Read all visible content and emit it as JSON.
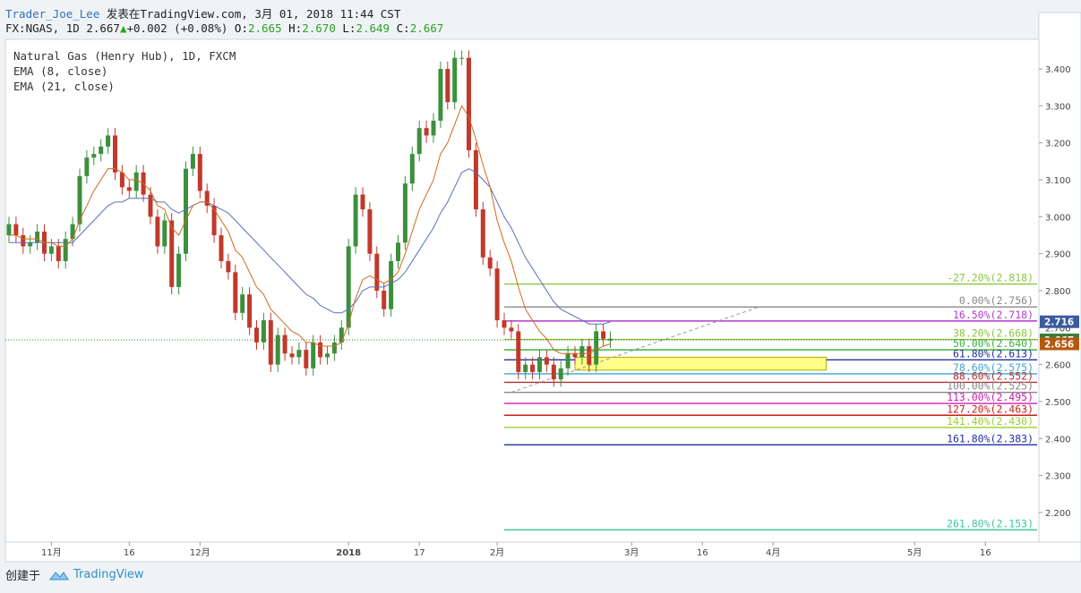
{
  "header": {
    "user": "Trader_Joe_Lee",
    "published": "发表在TradingView.com, 3月 01, 2018 11:44 CST",
    "symbol": "FX:NGAS, 1D",
    "price": "2.667",
    "change": "+0.002 (+0.08%)",
    "o_label": "O:",
    "o_value": "2.665",
    "h_label": "H:",
    "h_value": "2.670",
    "l_label": "L:",
    "l_value": "2.649",
    "c_label": "C:",
    "c_value": "2.667"
  },
  "legend": {
    "series": "Natural Gas (Henry Hub), 1D, FXCM",
    "ema_fast": "EMA (8, close)",
    "ema_slow": "EMA (21, close)"
  },
  "footer": {
    "created_with": "创建于",
    "brand": "TradingView"
  },
  "colors": {
    "up": "#3d8f3d",
    "down": "#c0392b",
    "ema_fast": "#d2691e",
    "ema_slow": "#5b6fb8",
    "accent_price": "#3c7c3c",
    "ema_badge": "#b5580b",
    "fib_badge": "#3b5b9f"
  },
  "chart_data": {
    "type": "candlestick",
    "ylim": [
      2.12,
      3.48
    ],
    "y_ticks": [
      "3.400",
      "3.300",
      "3.200",
      "3.100",
      "3.000",
      "2.900",
      "2.800",
      "2.700",
      "2.600",
      "2.500",
      "2.400",
      "2.300",
      "2.200"
    ],
    "x_ticks": [
      {
        "label": "11月",
        "i": 6
      },
      {
        "label": "16",
        "i": 17
      },
      {
        "label": "12月",
        "i": 27
      },
      {
        "label": "2018",
        "i": 48
      },
      {
        "label": "17",
        "i": 58
      },
      {
        "label": "2月",
        "i": 69
      },
      {
        "label": "3月",
        "i": 88
      },
      {
        "label": "16",
        "i": 98
      },
      {
        "label": "4月",
        "i": 108
      },
      {
        "label": "5月",
        "i": 128
      },
      {
        "label": "16",
        "i": 138
      }
    ],
    "last_price": 2.667,
    "price_badges": [
      {
        "text": "2.716",
        "value": 2.716,
        "color": "#3b5b9f"
      },
      {
        "text": "2.667",
        "value": 2.667,
        "color": "#3c7c3c"
      },
      {
        "text": "2.656",
        "value": 2.656,
        "color": "#b5580b"
      }
    ],
    "ohlc_close": [
      2.98,
      2.95,
      2.92,
      2.93,
      2.96,
      2.9,
      2.92,
      2.88,
      2.94,
      2.98,
      3.11,
      3.16,
      3.17,
      3.19,
      3.22,
      3.12,
      3.08,
      3.07,
      3.12,
      3.06,
      3.0,
      2.92,
      2.99,
      2.81,
      2.9,
      3.13,
      3.17,
      3.07,
      3.03,
      2.95,
      2.88,
      2.85,
      2.74,
      2.79,
      2.7,
      2.66,
      2.72,
      2.6,
      2.68,
      2.63,
      2.62,
      2.64,
      2.59,
      2.66,
      2.62,
      2.63,
      2.66,
      2.7,
      2.92,
      3.06,
      3.02,
      2.9,
      2.8,
      2.75,
      2.88,
      2.93,
      3.09,
      3.17,
      3.24,
      3.22,
      3.26,
      3.4,
      3.31,
      3.43,
      3.43,
      3.18,
      3.02,
      2.89,
      2.86,
      2.72,
      2.7,
      2.69,
      2.58,
      2.6,
      2.58,
      2.62,
      2.6,
      2.56,
      2.59,
      2.63,
      2.62,
      2.65,
      2.6,
      2.69,
      2.67,
      2.67
    ],
    "ohlc_open": [
      2.95,
      2.98,
      2.95,
      2.92,
      2.93,
      2.96,
      2.9,
      2.92,
      2.88,
      2.94,
      2.98,
      3.11,
      3.16,
      3.17,
      3.19,
      3.22,
      3.12,
      3.08,
      3.07,
      3.12,
      3.06,
      3.0,
      2.92,
      2.99,
      2.81,
      2.9,
      3.13,
      3.17,
      3.07,
      3.03,
      2.95,
      2.88,
      2.85,
      2.74,
      2.79,
      2.7,
      2.66,
      2.72,
      2.6,
      2.68,
      2.63,
      2.62,
      2.64,
      2.59,
      2.66,
      2.62,
      2.63,
      2.66,
      2.7,
      2.92,
      3.06,
      3.02,
      2.9,
      2.8,
      2.75,
      2.88,
      2.93,
      3.09,
      3.17,
      3.24,
      3.22,
      3.26,
      3.4,
      3.31,
      3.43,
      3.43,
      3.18,
      3.02,
      2.89,
      2.86,
      2.72,
      2.7,
      2.69,
      2.58,
      2.6,
      2.58,
      2.62,
      2.6,
      2.56,
      2.59,
      2.63,
      2.62,
      2.65,
      2.6,
      2.69,
      2.665
    ],
    "ema_fast": [
      2.95,
      2.95,
      2.94,
      2.94,
      2.94,
      2.93,
      2.93,
      2.92,
      2.92,
      2.94,
      2.99,
      3.03,
      3.07,
      3.1,
      3.13,
      3.13,
      3.12,
      3.1,
      3.1,
      3.09,
      3.07,
      3.03,
      3.02,
      2.97,
      2.95,
      2.99,
      3.03,
      3.04,
      3.04,
      3.02,
      2.99,
      2.96,
      2.91,
      2.89,
      2.85,
      2.81,
      2.79,
      2.75,
      2.73,
      2.71,
      2.69,
      2.68,
      2.66,
      2.66,
      2.65,
      2.65,
      2.65,
      2.66,
      2.71,
      2.78,
      2.83,
      2.84,
      2.83,
      2.82,
      2.83,
      2.85,
      2.9,
      2.96,
      3.02,
      3.06,
      3.1,
      3.17,
      3.2,
      3.25,
      3.3,
      3.27,
      3.21,
      3.14,
      3.08,
      2.99,
      2.93,
      2.88,
      2.81,
      2.75,
      2.72,
      2.69,
      2.67,
      2.64,
      2.63,
      2.63,
      2.63,
      2.63,
      2.63,
      2.64,
      2.65,
      2.656
    ],
    "ema_slow": [
      2.93,
      2.93,
      2.93,
      2.93,
      2.93,
      2.93,
      2.93,
      2.93,
      2.93,
      2.93,
      2.95,
      2.97,
      2.99,
      3.01,
      3.03,
      3.04,
      3.04,
      3.05,
      3.05,
      3.05,
      3.05,
      3.04,
      3.04,
      3.02,
      3.01,
      3.02,
      3.03,
      3.04,
      3.04,
      3.03,
      3.02,
      3.01,
      2.99,
      2.97,
      2.95,
      2.93,
      2.91,
      2.89,
      2.87,
      2.85,
      2.83,
      2.81,
      2.79,
      2.78,
      2.76,
      2.75,
      2.74,
      2.74,
      2.75,
      2.77,
      2.8,
      2.81,
      2.81,
      2.81,
      2.82,
      2.83,
      2.85,
      2.88,
      2.91,
      2.94,
      2.97,
      3.01,
      3.04,
      3.08,
      3.12,
      3.13,
      3.12,
      3.1,
      3.08,
      3.04,
      3.0,
      2.97,
      2.93,
      2.89,
      2.86,
      2.83,
      2.8,
      2.77,
      2.75,
      2.74,
      2.73,
      2.72,
      2.71,
      2.71,
      2.71,
      2.716
    ],
    "fib_levels": [
      {
        "label": "-27.20%(2.818)",
        "value": 2.818,
        "color": "#8cc63f"
      },
      {
        "label": "0.00%(2.756)",
        "value": 2.756,
        "color": "#888888"
      },
      {
        "label": "16.50%(2.718)",
        "value": 2.718,
        "color": "#b13bd1"
      },
      {
        "label": "38.20%(2.668)",
        "value": 2.668,
        "color": "#8cc63f"
      },
      {
        "label": "50.00%(2.640)",
        "value": 2.64,
        "color": "#3fb13f"
      },
      {
        "label": "61.80%(2.613)",
        "value": 2.613,
        "color": "#2230a0"
      },
      {
        "label": "78.60%(2.575)",
        "value": 2.575,
        "color": "#3fa3d0"
      },
      {
        "label": "88.60%(2.552)",
        "value": 2.552,
        "color": "#b03030"
      },
      {
        "label": "100.00%(2.525)",
        "value": 2.525,
        "color": "#888888"
      },
      {
        "label": "113.00%(2.495)",
        "value": 2.495,
        "color": "#d01cb0"
      },
      {
        "label": "127.20%(2.463)",
        "value": 2.463,
        "color": "#c81e1e"
      },
      {
        "label": "141.40%(2.430)",
        "value": 2.43,
        "color": "#9acd32"
      },
      {
        "label": "161.80%(2.383)",
        "value": 2.383,
        "color": "#2230a0"
      },
      {
        "label": "261.80%(2.153)",
        "value": 2.153,
        "color": "#3fc6a0"
      }
    ],
    "highlight_zone": {
      "top": 2.62,
      "bottom": 2.585,
      "color": "#ffff88"
    },
    "trendline": {
      "from": {
        "i": 71,
        "v": 2.525
      },
      "to": {
        "i": 106,
        "v": 2.756
      }
    }
  }
}
